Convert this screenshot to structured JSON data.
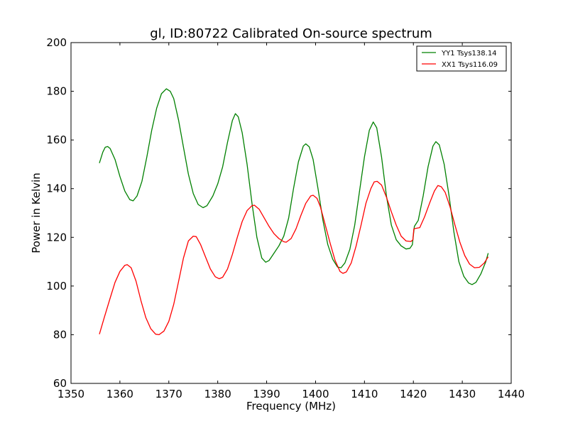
{
  "chart_data": {
    "type": "line",
    "title": "gl, ID:80722 Calibrated On-source spectrum",
    "xlabel": "Frequency (MHz)",
    "ylabel": "Power in Kelvin",
    "xlim": [
      1350,
      1440
    ],
    "ylim": [
      60,
      200
    ],
    "xticks": [
      "1350",
      "1360",
      "1370",
      "1380",
      "1390",
      "1400",
      "1410",
      "1420",
      "1430",
      "1440"
    ],
    "yticks": [
      "60",
      "80",
      "100",
      "120",
      "140",
      "160",
      "180",
      "200"
    ],
    "grid": false,
    "legend_position": "top-right",
    "series": [
      {
        "name": "YY1 Tsys138.14",
        "color": "#008000",
        "points": [
          [
            1355.8,
            150.5
          ],
          [
            1356.5,
            155
          ],
          [
            1357,
            157
          ],
          [
            1357.5,
            157.3
          ],
          [
            1358,
            156.5
          ],
          [
            1359,
            152
          ],
          [
            1360,
            145
          ],
          [
            1361,
            139
          ],
          [
            1362,
            135.5
          ],
          [
            1362.7,
            135
          ],
          [
            1363.5,
            137
          ],
          [
            1364.5,
            143
          ],
          [
            1365.5,
            153
          ],
          [
            1366.5,
            164
          ],
          [
            1367.5,
            173
          ],
          [
            1368.5,
            179
          ],
          [
            1369.5,
            181
          ],
          [
            1370.3,
            180
          ],
          [
            1371,
            177
          ],
          [
            1372,
            168
          ],
          [
            1373,
            157
          ],
          [
            1374,
            146
          ],
          [
            1375,
            138
          ],
          [
            1376,
            133.5
          ],
          [
            1377,
            132.2
          ],
          [
            1377.8,
            133
          ],
          [
            1379,
            137
          ],
          [
            1380,
            142
          ],
          [
            1381,
            149
          ],
          [
            1382,
            159
          ],
          [
            1383,
            168
          ],
          [
            1383.6,
            170.8
          ],
          [
            1384.2,
            169.5
          ],
          [
            1385,
            163
          ],
          [
            1386,
            150
          ],
          [
            1387,
            134
          ],
          [
            1388,
            120
          ],
          [
            1389,
            111.5
          ],
          [
            1389.8,
            109.8
          ],
          [
            1390.5,
            110.5
          ],
          [
            1391.5,
            113.5
          ],
          [
            1392.5,
            116.5
          ],
          [
            1393.5,
            120.5
          ],
          [
            1394.5,
            128
          ],
          [
            1395.5,
            140
          ],
          [
            1396.5,
            151
          ],
          [
            1397.5,
            157.5
          ],
          [
            1398,
            158.4
          ],
          [
            1398.7,
            157.2
          ],
          [
            1399.5,
            152
          ],
          [
            1400.5,
            140
          ],
          [
            1401.5,
            127
          ],
          [
            1402.5,
            117
          ],
          [
            1403.5,
            111
          ],
          [
            1404.5,
            107.8
          ],
          [
            1405.2,
            107.5
          ],
          [
            1406,
            109.5
          ],
          [
            1407,
            115
          ],
          [
            1408,
            125
          ],
          [
            1409,
            139
          ],
          [
            1410,
            153
          ],
          [
            1411,
            164
          ],
          [
            1411.8,
            167.4
          ],
          [
            1412.5,
            165
          ],
          [
            1413.5,
            153
          ],
          [
            1414.5,
            137
          ],
          [
            1415.5,
            125
          ],
          [
            1416.5,
            119
          ],
          [
            1417.5,
            116.5
          ],
          [
            1418.5,
            115.2
          ],
          [
            1419.3,
            115.5
          ],
          [
            1419.8,
            117
          ],
          [
            1420.2,
            124.5
          ],
          [
            1421,
            127
          ],
          [
            1422,
            137
          ],
          [
            1423,
            149
          ],
          [
            1424,
            157.5
          ],
          [
            1424.6,
            159.3
          ],
          [
            1425.3,
            158
          ],
          [
            1426.3,
            150
          ],
          [
            1427.3,
            137
          ],
          [
            1428.3,
            122
          ],
          [
            1429.3,
            110
          ],
          [
            1430.3,
            104
          ],
          [
            1431.3,
            101.2
          ],
          [
            1432,
            100.6
          ],
          [
            1432.8,
            101.5
          ],
          [
            1433.8,
            105
          ],
          [
            1434.8,
            110
          ],
          [
            1435.3,
            113.5
          ]
        ]
      },
      {
        "name": "XX1 Tsys116.09",
        "color": "#ff0000",
        "points": [
          [
            1355.8,
            80.2
          ],
          [
            1356.8,
            87
          ],
          [
            1358,
            95
          ],
          [
            1359,
            101.5
          ],
          [
            1360,
            106
          ],
          [
            1361,
            108.5
          ],
          [
            1361.5,
            108.8
          ],
          [
            1362.3,
            107.5
          ],
          [
            1363.3,
            102
          ],
          [
            1364.3,
            94
          ],
          [
            1365.3,
            87
          ],
          [
            1366.3,
            82.5
          ],
          [
            1367.3,
            80.2
          ],
          [
            1368,
            80
          ],
          [
            1369,
            81.5
          ],
          [
            1370,
            85.5
          ],
          [
            1371,
            92.5
          ],
          [
            1372,
            102
          ],
          [
            1373,
            111.5
          ],
          [
            1374,
            118.5
          ],
          [
            1375,
            120.5
          ],
          [
            1375.6,
            120.3
          ],
          [
            1376.5,
            117
          ],
          [
            1377.5,
            112
          ],
          [
            1378.5,
            107
          ],
          [
            1379.5,
            103.8
          ],
          [
            1380.3,
            103
          ],
          [
            1381,
            103.6
          ],
          [
            1382,
            107
          ],
          [
            1383,
            113
          ],
          [
            1384,
            120
          ],
          [
            1385,
            126.5
          ],
          [
            1386,
            131
          ],
          [
            1387,
            133
          ],
          [
            1387.5,
            133.2
          ],
          [
            1388.5,
            131.5
          ],
          [
            1389.5,
            128
          ],
          [
            1390.5,
            124.5
          ],
          [
            1391.5,
            121.5
          ],
          [
            1392.5,
            119.5
          ],
          [
            1393.5,
            118.2
          ],
          [
            1394,
            118
          ],
          [
            1395,
            119.5
          ],
          [
            1396,
            123.5
          ],
          [
            1397,
            129
          ],
          [
            1398,
            134
          ],
          [
            1399,
            137
          ],
          [
            1399.5,
            137.3
          ],
          [
            1400.3,
            136
          ],
          [
            1401,
            132.5
          ],
          [
            1402,
            125
          ],
          [
            1403,
            117.5
          ],
          [
            1404,
            110.5
          ],
          [
            1405,
            106
          ],
          [
            1405.6,
            105.2
          ],
          [
            1406.3,
            105.8
          ],
          [
            1407.3,
            109.5
          ],
          [
            1408.3,
            116.5
          ],
          [
            1409.3,
            125
          ],
          [
            1410.3,
            134
          ],
          [
            1411.3,
            140
          ],
          [
            1412,
            142.8
          ],
          [
            1412.6,
            143
          ],
          [
            1413.5,
            141.5
          ],
          [
            1414.5,
            136.5
          ],
          [
            1415.5,
            130.5
          ],
          [
            1416.5,
            125
          ],
          [
            1417.5,
            120.5
          ],
          [
            1418.5,
            118.5
          ],
          [
            1419.5,
            118.3
          ],
          [
            1419.9,
            119
          ],
          [
            1420.1,
            123.5
          ],
          [
            1420.8,
            123.8
          ],
          [
            1421.3,
            124
          ],
          [
            1422.3,
            128.5
          ],
          [
            1423.3,
            134
          ],
          [
            1424.3,
            139
          ],
          [
            1425,
            141.3
          ],
          [
            1425.7,
            140.8
          ],
          [
            1426.5,
            138.5
          ],
          [
            1427.5,
            132.5
          ],
          [
            1428.5,
            125
          ],
          [
            1429.5,
            118
          ],
          [
            1430.5,
            112.5
          ],
          [
            1431.5,
            109
          ],
          [
            1432.5,
            107.5
          ],
          [
            1433.5,
            107.7
          ],
          [
            1434.5,
            109.5
          ],
          [
            1435.3,
            112
          ]
        ]
      }
    ]
  }
}
